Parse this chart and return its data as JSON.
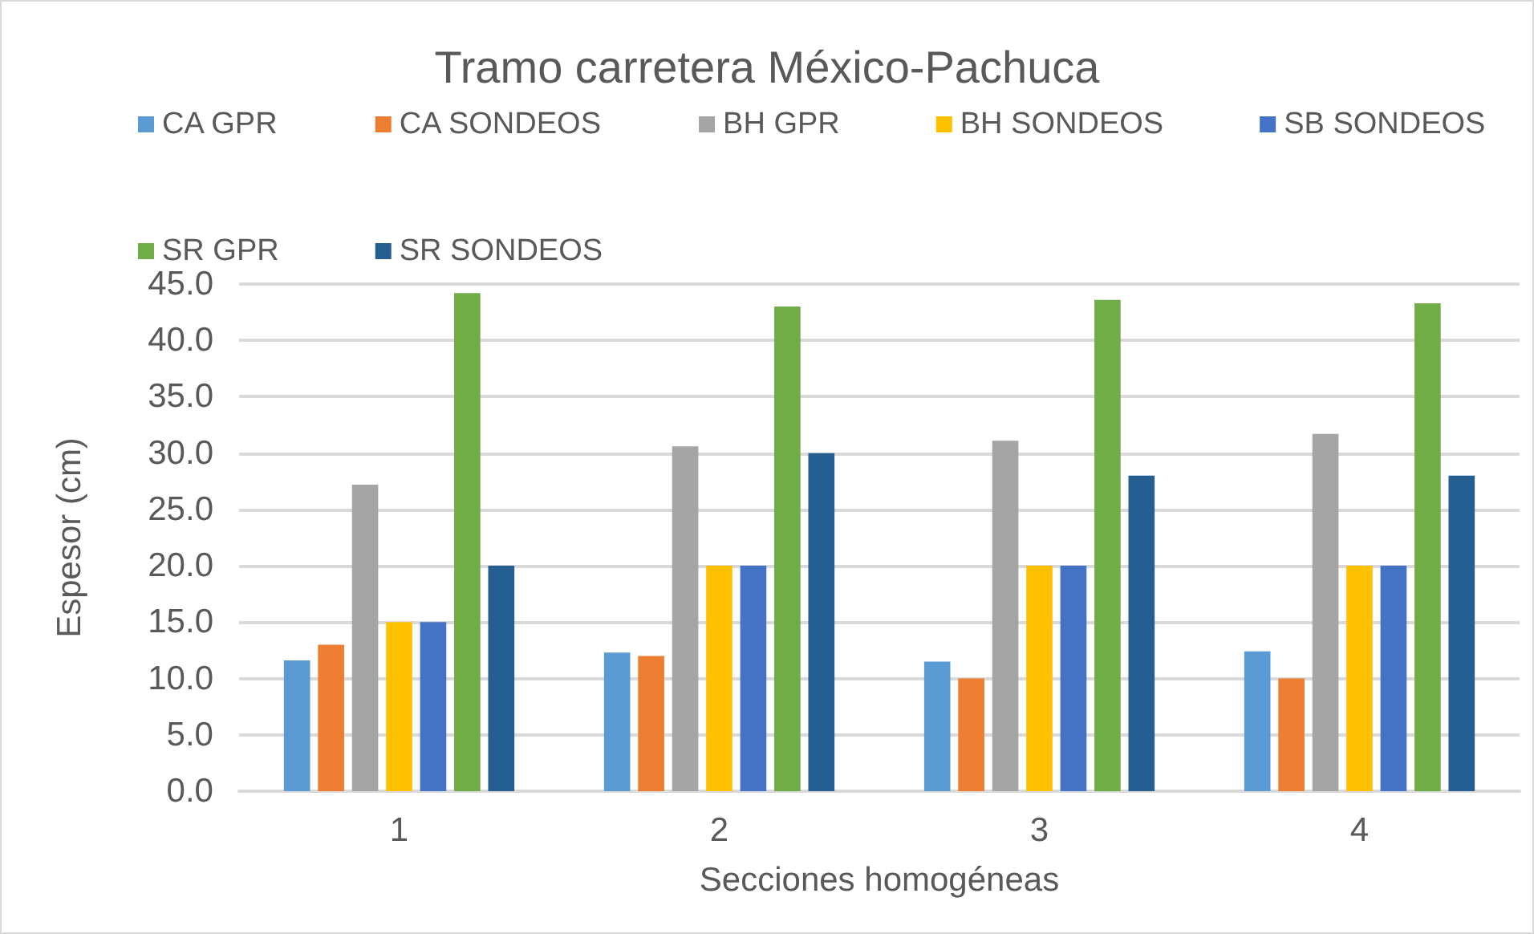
{
  "chart_data": {
    "type": "bar",
    "title": "Tramo carretera México-Pachuca",
    "xlabel": "Secciones homogéneas",
    "ylabel": "Espesor (cm)",
    "categories": [
      "1",
      "2",
      "3",
      "4"
    ],
    "series": [
      {
        "name": "CA GPR",
        "color": "#5b9bd5",
        "values": [
          11.6,
          12.3,
          11.5,
          12.4
        ]
      },
      {
        "name": "CA SONDEOS",
        "color": "#ed7d31",
        "values": [
          13.0,
          12.0,
          10.0,
          10.0
        ]
      },
      {
        "name": "BH GPR",
        "color": "#a5a5a5",
        "values": [
          27.2,
          30.6,
          31.1,
          31.7
        ]
      },
      {
        "name": "BH SONDEOS",
        "color": "#ffc000",
        "values": [
          15.0,
          20.0,
          20.0,
          20.0
        ]
      },
      {
        "name": "SB SONDEOS",
        "color": "#4472c4",
        "values": [
          15.0,
          20.0,
          20.0,
          20.0
        ]
      },
      {
        "name": "SR GPR",
        "color": "#70ad47",
        "values": [
          44.2,
          43.0,
          43.6,
          43.3
        ]
      },
      {
        "name": "SR SONDEOS",
        "color": "#255e91",
        "values": [
          20.0,
          30.0,
          28.0,
          28.0
        ]
      }
    ],
    "ylim": [
      0,
      45
    ],
    "yticks": [
      {
        "value": 0,
        "label": "0.0"
      },
      {
        "value": 5,
        "label": "5.0"
      },
      {
        "value": 10,
        "label": "10.0"
      },
      {
        "value": 15,
        "label": "15.0"
      },
      {
        "value": 20,
        "label": "20.0"
      },
      {
        "value": 25,
        "label": "25.0"
      },
      {
        "value": 30,
        "label": "30.0"
      },
      {
        "value": 35,
        "label": "35.0"
      },
      {
        "value": 40,
        "label": "40.0"
      },
      {
        "value": 45,
        "label": "45.0"
      }
    ],
    "grid": "y",
    "legend": "top"
  }
}
